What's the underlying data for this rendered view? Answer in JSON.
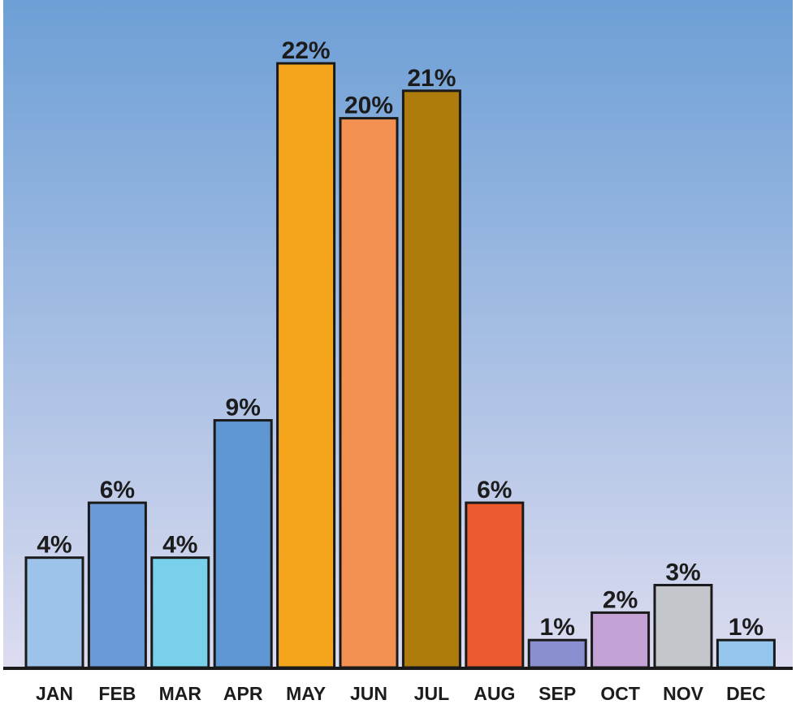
{
  "chart_data": {
    "type": "bar",
    "categories": [
      "JAN",
      "FEB",
      "MAR",
      "APR",
      "MAY",
      "JUN",
      "JUL",
      "AUG",
      "SEP",
      "OCT",
      "NOV",
      "DEC"
    ],
    "values": [
      4,
      6,
      4,
      9,
      22,
      20,
      21,
      6,
      1,
      2,
      3,
      1
    ],
    "value_labels": [
      "4%",
      "6%",
      "4%",
      "9%",
      "22%",
      "20%",
      "21%",
      "6%",
      "1%",
      "2%",
      "3%",
      "1%"
    ],
    "unit": "%",
    "bar_colors": [
      "#9ec3ea",
      "#6a9bd6",
      "#79d0ea",
      "#5f96d4",
      "#f4a51c",
      "#f39152",
      "#ad7c0c",
      "#ec5b30",
      "#8a8fcf",
      "#c5a2d6",
      "#c3c6ca",
      "#95c7ee"
    ],
    "title": "",
    "xlabel": "",
    "ylabel": "",
    "ylim": [
      0,
      22
    ],
    "grid": false,
    "legend": "none"
  },
  "colors": {
    "background_top": "#6d9fd6",
    "background_bottom": "#dcdcf0",
    "axis": "#1a1a1a",
    "text": "#1c1c1c"
  }
}
